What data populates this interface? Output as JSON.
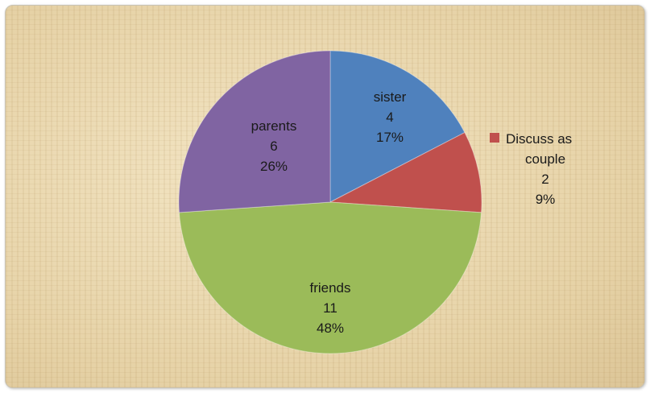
{
  "chart_data": {
    "type": "pie",
    "slices": [
      {
        "label": "sister",
        "count": "4",
        "percent": "17%",
        "value": 4,
        "color": "#4f81bd"
      },
      {
        "label": "Discuss as couple",
        "count": "2",
        "percent": "9%",
        "value": 2,
        "color": "#c0504d"
      },
      {
        "label": "friends",
        "count": "11",
        "percent": "48%",
        "value": 11,
        "color": "#9bbb59"
      },
      {
        "label": "parents",
        "count": "6",
        "percent": "26%",
        "value": 6,
        "color": "#8064a2"
      }
    ],
    "legend": {
      "position": "right",
      "entries": [
        "Discuss as couple"
      ]
    },
    "title": ""
  }
}
